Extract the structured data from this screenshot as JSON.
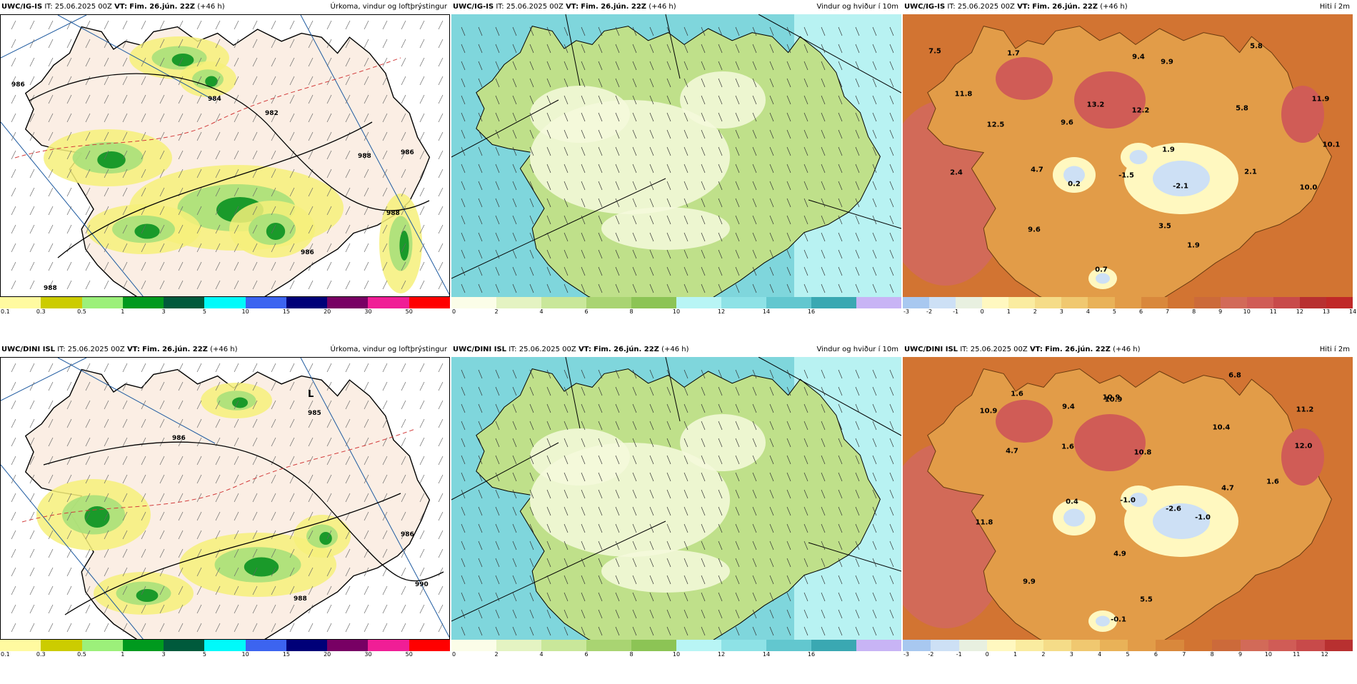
{
  "rows": [
    {
      "model": "UWC/IG-IS",
      "it": "IT: 25.06.2025 00Z",
      "vt_label": "VT:",
      "vt_value": "Fim. 26.jún. 22Z",
      "lead": "(+46 h)"
    },
    {
      "model": "UWC/DINI ISL",
      "it": "IT: 25.06.2025 00Z",
      "vt_label": "VT:",
      "vt_value": "Fim. 26.jún. 22Z",
      "lead": "(+46 h)"
    }
  ],
  "panel_titles": {
    "precip": "Úrkoma, vindur og loftþrýstingur",
    "wind": "Vindur og hviður í 10m",
    "temp": "Hiti í 2m"
  },
  "colorbars": {
    "precip": {
      "colors": [
        "#fffaa0",
        "#cccc00",
        "#9cf07a",
        "#009a1e",
        "#005a3c",
        "#00fafa",
        "#3c64f0",
        "#000078",
        "#780064",
        "#f01e96",
        "#ff0000"
      ],
      "ticks": [
        "0.1",
        "0.3",
        "0.5",
        "1",
        "3",
        "5",
        "10",
        "15",
        "20",
        "30",
        "50"
      ]
    },
    "wind": {
      "colors": [
        "#fbfde8",
        "#e4f3c2",
        "#c9e79a",
        "#a9d472",
        "#8cc455",
        "#b8f5f5",
        "#8ee2e6",
        "#62c7cf",
        "#3aa8b2",
        "#c8b4f5"
      ],
      "ticks": [
        "0",
        "2",
        "4",
        "6",
        "8",
        "10",
        "12",
        "14",
        "16"
      ]
    },
    "temp_top": {
      "colors": [
        "#a8c8f0",
        "#cde0f5",
        "#e8f0e0",
        "#fff8c0",
        "#faeca0",
        "#f5dc88",
        "#f0c870",
        "#e9b258",
        "#e29c48",
        "#d9883c",
        "#d27432",
        "#cc6a3a",
        "#d26a58",
        "#d05c56",
        "#c84a4a",
        "#b83030",
        "#c02828"
      ],
      "ticks": [
        "-3",
        "-2",
        "-1",
        "0",
        "1",
        "2",
        "3",
        "4",
        "5",
        "6",
        "7",
        "8",
        "9",
        "10",
        "11",
        "12",
        "13",
        "14"
      ]
    },
    "temp_bottom": {
      "colors": [
        "#a8c8f0",
        "#cde0f5",
        "#e8f0e0",
        "#fff8c0",
        "#faeca0",
        "#f5dc88",
        "#f0c870",
        "#e9b258",
        "#e29c48",
        "#d9883c",
        "#d27432",
        "#cc6a3a",
        "#d26a58",
        "#d05c56",
        "#c84a4a",
        "#b83030"
      ],
      "ticks": [
        "-3",
        "-2",
        "-1",
        "0",
        "1",
        "2",
        "3",
        "4",
        "5",
        "6",
        "7",
        "8",
        "9",
        "10",
        "11",
        "12"
      ]
    }
  },
  "isobars": {
    "top": [
      "986",
      "984",
      "982",
      "986",
      "988",
      "986",
      "988",
      "988"
    ],
    "bottom": [
      "986",
      "L",
      "985",
      "986",
      "988",
      "990"
    ]
  },
  "temp_labels": {
    "top": [
      "7.5",
      "1.7",
      "9.4",
      "5.8",
      "9.9",
      "11.8",
      "13.2",
      "12.2",
      "5.8",
      "11.9",
      "12.5",
      "9.6",
      "10.1",
      "1.9",
      "2.4",
      "4.7",
      "0.2",
      "-1.5",
      "-2.1",
      "2.1",
      "10.0",
      "9.6",
      "3.5",
      "1.9",
      "0.7"
    ],
    "bottom": [
      "1.6",
      "10.9",
      "6.8",
      "9.4",
      "10.9",
      "11.2",
      "10.9",
      "10.4",
      "4.7",
      "1.6",
      "10.8",
      "4.7",
      "12.0",
      "1.6",
      "11.8",
      "0.4",
      "-1.0",
      "-2.6",
      "-1.0",
      "9.9",
      "4.9",
      "5.5",
      "-0.1"
    ]
  },
  "legend_colors": {
    "coast": "#000000",
    "isobar": "#000000",
    "dashed_isotherm": "#d23c3c",
    "lat_lon_grid": "#1e5aa0"
  }
}
